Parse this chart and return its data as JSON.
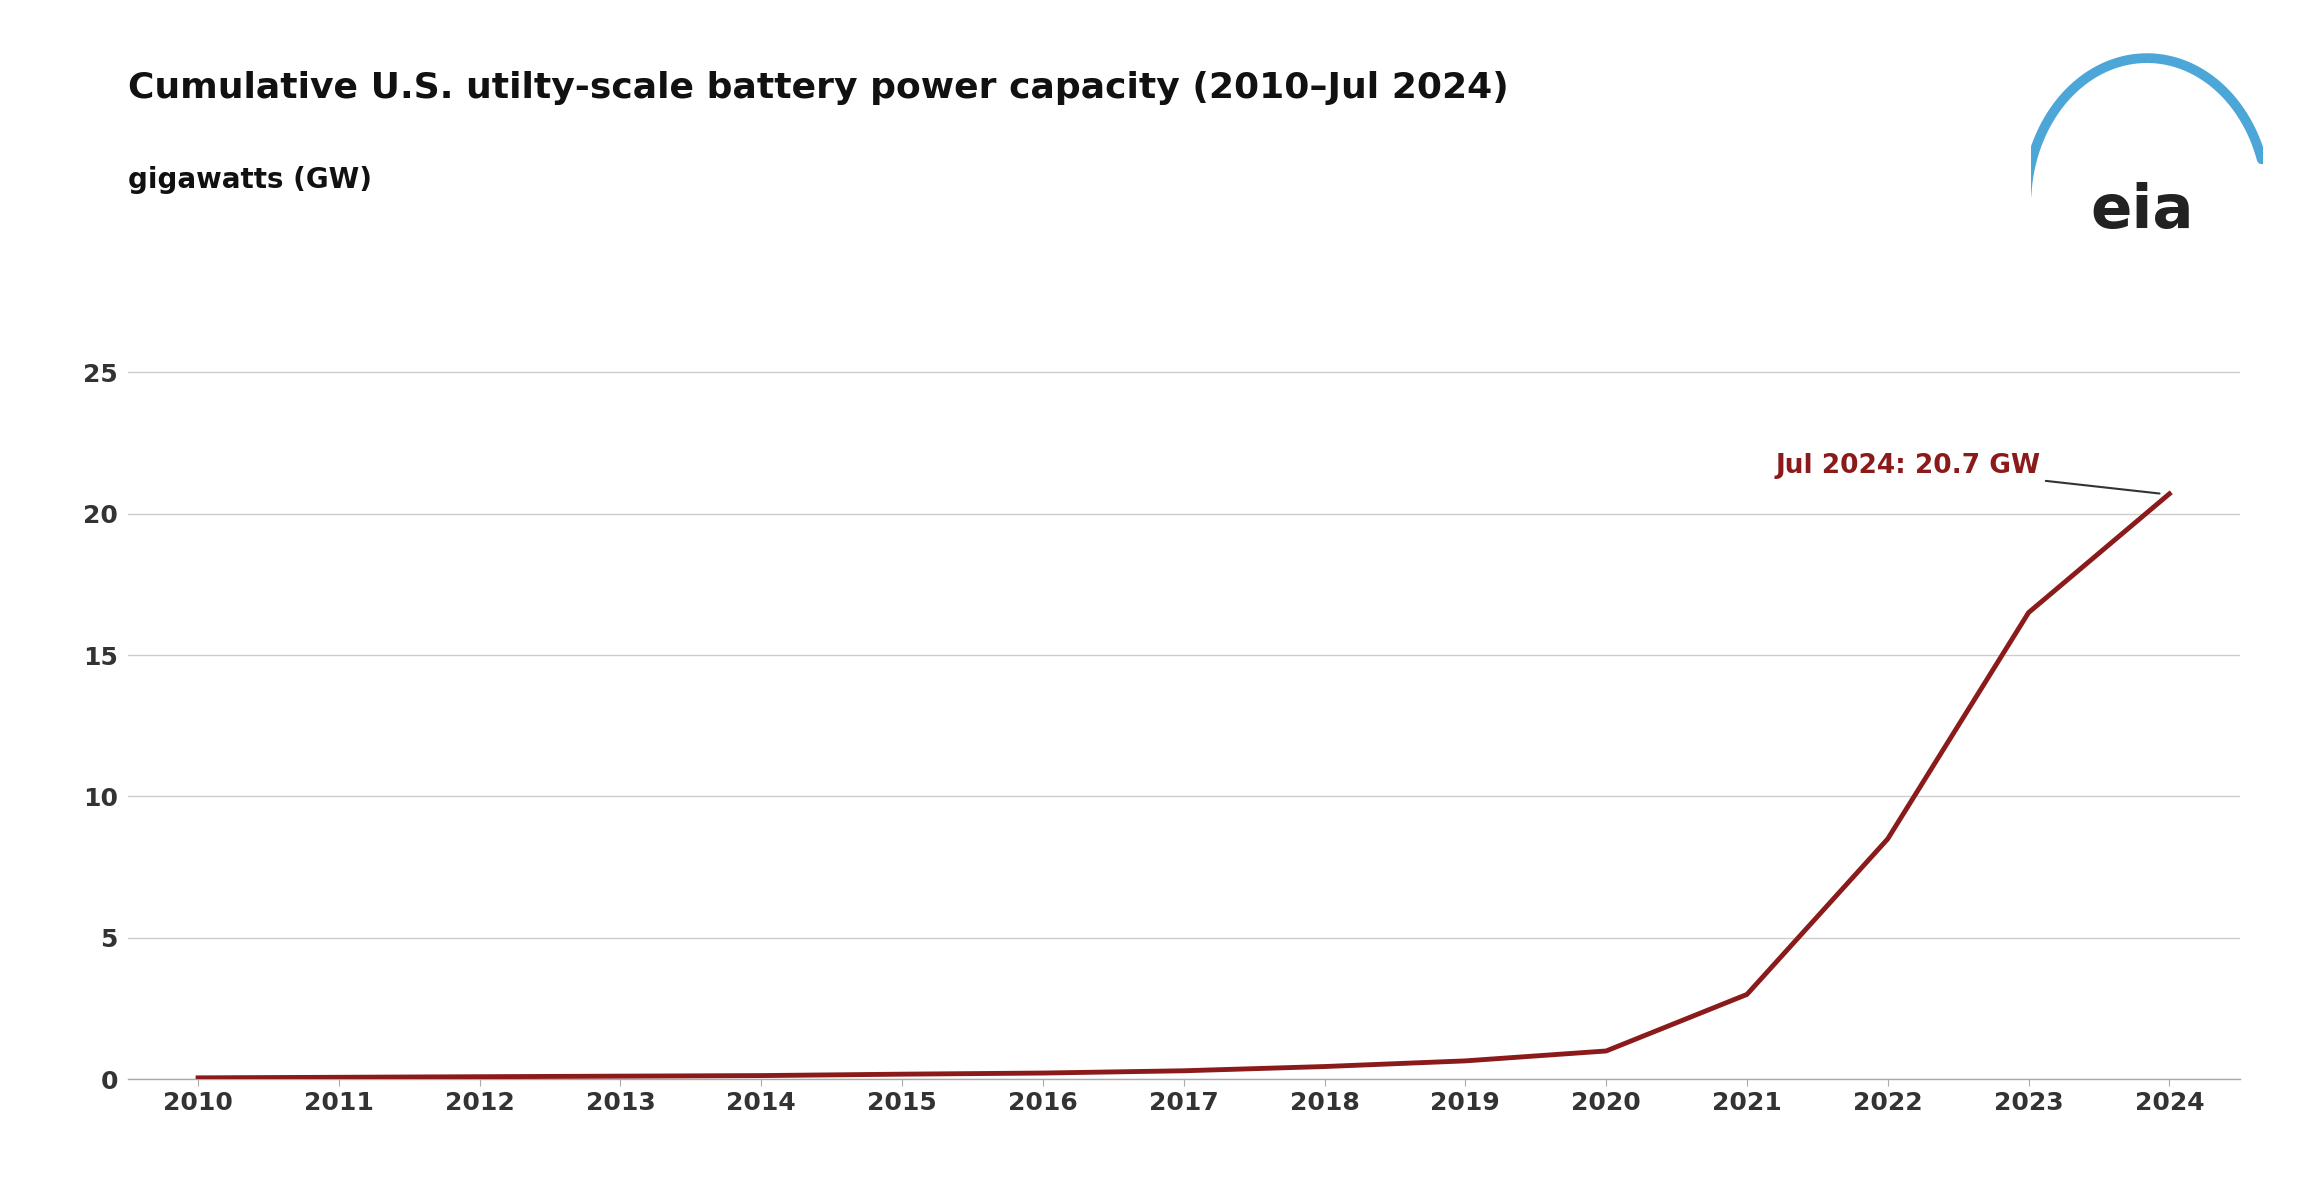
{
  "title": "Cumulative U.S. utilty-scale battery power capacity (2010–Jul 2024)",
  "subtitle": "gigawatts (GW)",
  "line_color": "#8B1A1A",
  "background_color": "#ffffff",
  "grid_color": "#cccccc",
  "annotation_text": "Jul 2024: 20.7 GW",
  "annotation_color": "#8B1A1A",
  "years": [
    2010,
    2011,
    2012,
    2013,
    2014,
    2015,
    2016,
    2017,
    2018,
    2019,
    2020,
    2021,
    2022,
    2023,
    2024
  ],
  "values": [
    0.05,
    0.07,
    0.09,
    0.11,
    0.13,
    0.18,
    0.22,
    0.3,
    0.45,
    0.65,
    1.0,
    3.0,
    8.5,
    16.5,
    20.7
  ],
  "xlim": [
    2009.5,
    2024.5
  ],
  "ylim": [
    0,
    26
  ],
  "yticks": [
    0,
    5,
    10,
    15,
    20,
    25
  ],
  "xticks": [
    2010,
    2011,
    2012,
    2013,
    2014,
    2015,
    2016,
    2017,
    2018,
    2019,
    2020,
    2021,
    2022,
    2023,
    2024
  ],
  "title_fontsize": 26,
  "subtitle_fontsize": 20,
  "tick_fontsize": 18,
  "annotation_fontsize": 19,
  "line_width": 3.5,
  "eia_arc_color": "#4da6d8",
  "eia_text_color": "#222222"
}
